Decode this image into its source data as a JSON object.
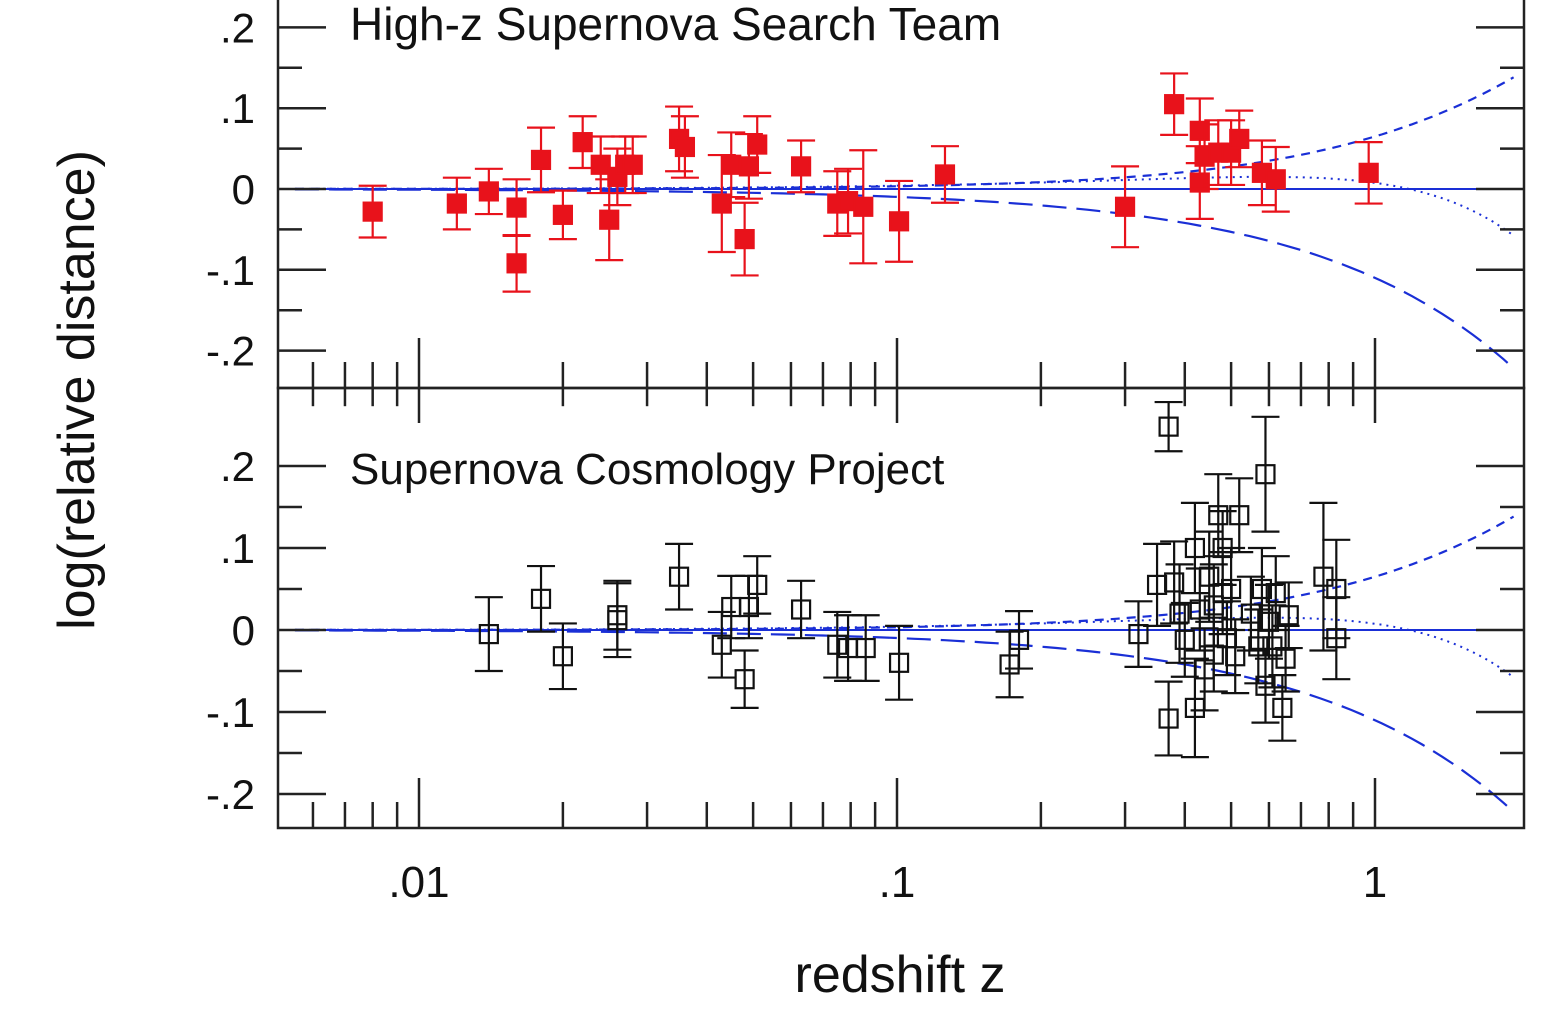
{
  "colors": {
    "axis": "#222222",
    "hz_marker": "#e8121b",
    "hz_title": "#e8121b",
    "scp_marker": "#111111",
    "scp_title": "#111111",
    "models": "#1a2fd6"
  },
  "chart_data": [
    {
      "type": "scatter",
      "title": "High-z Supernova Search Team",
      "xlabel": "redshift z",
      "ylabel": "log(relative distance)",
      "xscale": "log",
      "xlim": [
        0.005,
        2.0
      ],
      "ylim": [
        -0.24,
        0.24
      ],
      "y_ticks": [
        ".2",
        ".1",
        "0",
        "-.1",
        "-.2"
      ],
      "marker": "filled-square",
      "series": [
        {
          "points": [
            {
              "z": 0.008,
              "y": -0.028,
              "err": 0.032
            },
            {
              "z": 0.012,
              "y": -0.018,
              "err": 0.032
            },
            {
              "z": 0.014,
              "y": -0.003,
              "err": 0.028
            },
            {
              "z": 0.016,
              "y": -0.092,
              "err": 0.035
            },
            {
              "z": 0.016,
              "y": -0.023,
              "err": 0.035
            },
            {
              "z": 0.018,
              "y": 0.036,
              "err": 0.04
            },
            {
              "z": 0.02,
              "y": -0.032,
              "err": 0.03
            },
            {
              "z": 0.022,
              "y": 0.058,
              "err": 0.032
            },
            {
              "z": 0.024,
              "y": 0.03,
              "err": 0.035
            },
            {
              "z": 0.025,
              "y": -0.038,
              "err": 0.05
            },
            {
              "z": 0.026,
              "y": 0.015,
              "err": 0.035
            },
            {
              "z": 0.027,
              "y": 0.03,
              "err": 0.035
            },
            {
              "z": 0.028,
              "y": 0.03,
              "err": 0.035
            },
            {
              "z": 0.035,
              "y": 0.062,
              "err": 0.04
            },
            {
              "z": 0.036,
              "y": 0.052,
              "err": 0.038
            },
            {
              "z": 0.043,
              "y": -0.018,
              "err": 0.06
            },
            {
              "z": 0.045,
              "y": 0.03,
              "err": 0.04
            },
            {
              "z": 0.048,
              "y": -0.062,
              "err": 0.045
            },
            {
              "z": 0.049,
              "y": 0.028,
              "err": 0.04
            },
            {
              "z": 0.051,
              "y": 0.055,
              "err": 0.035
            },
            {
              "z": 0.063,
              "y": 0.028,
              "err": 0.032
            },
            {
              "z": 0.075,
              "y": -0.018,
              "err": 0.04
            },
            {
              "z": 0.079,
              "y": -0.015,
              "err": 0.04
            },
            {
              "z": 0.085,
              "y": -0.022,
              "err": 0.07
            },
            {
              "z": 0.101,
              "y": -0.04,
              "err": 0.05
            },
            {
              "z": 0.126,
              "y": 0.018,
              "err": 0.035
            },
            {
              "z": 0.3,
              "y": -0.022,
              "err": 0.05
            },
            {
              "z": 0.38,
              "y": 0.105,
              "err": 0.038
            },
            {
              "z": 0.43,
              "y": 0.072,
              "err": 0.04
            },
            {
              "z": 0.43,
              "y": 0.008,
              "err": 0.045
            },
            {
              "z": 0.44,
              "y": 0.04,
              "err": 0.04
            },
            {
              "z": 0.47,
              "y": 0.045,
              "err": 0.04
            },
            {
              "z": 0.5,
              "y": 0.045,
              "err": 0.04
            },
            {
              "z": 0.52,
              "y": 0.062,
              "err": 0.035
            },
            {
              "z": 0.58,
              "y": 0.02,
              "err": 0.04
            },
            {
              "z": 0.62,
              "y": 0.012,
              "err": 0.04
            },
            {
              "z": 0.97,
              "y": 0.02,
              "err": 0.038
            }
          ]
        }
      ]
    },
    {
      "type": "scatter",
      "title": "Supernova Cosmology Project",
      "xlabel": "redshift z",
      "ylabel": "log(relative distance)",
      "xscale": "log",
      "xlim": [
        0.005,
        2.0
      ],
      "ylim": [
        -0.24,
        0.24
      ],
      "x_ticks": [
        ".01",
        ".1",
        "1"
      ],
      "y_ticks": [
        ".2",
        ".1",
        "0",
        "-.1",
        "-.2"
      ],
      "marker": "open-square",
      "series": [
        {
          "points": [
            {
              "z": 0.014,
              "y": -0.005,
              "err": 0.045
            },
            {
              "z": 0.018,
              "y": 0.038,
              "err": 0.04
            },
            {
              "z": 0.02,
              "y": -0.032,
              "err": 0.04
            },
            {
              "z": 0.026,
              "y": 0.012,
              "err": 0.045
            },
            {
              "z": 0.026,
              "y": 0.018,
              "err": 0.042
            },
            {
              "z": 0.035,
              "y": 0.065,
              "err": 0.04
            },
            {
              "z": 0.043,
              "y": -0.018,
              "err": 0.04
            },
            {
              "z": 0.045,
              "y": 0.028,
              "err": 0.038
            },
            {
              "z": 0.048,
              "y": -0.06,
              "err": 0.035
            },
            {
              "z": 0.049,
              "y": 0.028,
              "err": 0.038
            },
            {
              "z": 0.051,
              "y": 0.055,
              "err": 0.035
            },
            {
              "z": 0.063,
              "y": 0.025,
              "err": 0.035
            },
            {
              "z": 0.075,
              "y": -0.018,
              "err": 0.04
            },
            {
              "z": 0.079,
              "y": -0.022,
              "err": 0.04
            },
            {
              "z": 0.086,
              "y": -0.022,
              "err": 0.04
            },
            {
              "z": 0.101,
              "y": -0.04,
              "err": 0.045
            },
            {
              "z": 0.172,
              "y": -0.042,
              "err": 0.04
            },
            {
              "z": 0.18,
              "y": -0.012,
              "err": 0.035
            },
            {
              "z": 0.32,
              "y": -0.005,
              "err": 0.04
            },
            {
              "z": 0.35,
              "y": 0.055,
              "err": 0.05
            },
            {
              "z": 0.37,
              "y": 0.248,
              "err": 0.03
            },
            {
              "z": 0.37,
              "y": -0.108,
              "err": 0.045
            },
            {
              "z": 0.38,
              "y": 0.058,
              "err": 0.05
            },
            {
              "z": 0.39,
              "y": 0.02,
              "err": 0.06
            },
            {
              "z": 0.4,
              "y": -0.012,
              "err": 0.045
            },
            {
              "z": 0.42,
              "y": 0.1,
              "err": 0.055
            },
            {
              "z": 0.42,
              "y": -0.095,
              "err": 0.06
            },
            {
              "z": 0.43,
              "y": 0.025,
              "err": 0.05
            },
            {
              "z": 0.44,
              "y": -0.048,
              "err": 0.05
            },
            {
              "z": 0.45,
              "y": 0.065,
              "err": 0.055
            },
            {
              "z": 0.46,
              "y": 0.03,
              "err": 0.05
            },
            {
              "z": 0.46,
              "y": -0.03,
              "err": 0.045
            },
            {
              "z": 0.47,
              "y": 0.14,
              "err": 0.05
            },
            {
              "z": 0.48,
              "y": 0.1,
              "err": 0.045
            },
            {
              "z": 0.48,
              "y": 0.045,
              "err": 0.05
            },
            {
              "z": 0.49,
              "y": -0.01,
              "err": 0.045
            },
            {
              "z": 0.5,
              "y": 0.05,
              "err": 0.05
            },
            {
              "z": 0.51,
              "y": -0.032,
              "err": 0.045
            },
            {
              "z": 0.52,
              "y": 0.14,
              "err": 0.045
            },
            {
              "z": 0.55,
              "y": 0.02,
              "err": 0.045
            },
            {
              "z": 0.57,
              "y": -0.02,
              "err": 0.045
            },
            {
              "z": 0.58,
              "y": 0.05,
              "err": 0.05
            },
            {
              "z": 0.59,
              "y": 0.19,
              "err": 0.07
            },
            {
              "z": 0.59,
              "y": -0.068,
              "err": 0.045
            },
            {
              "z": 0.6,
              "y": 0.01,
              "err": 0.045
            },
            {
              "z": 0.61,
              "y": -0.02,
              "err": 0.05
            },
            {
              "z": 0.62,
              "y": 0.045,
              "err": 0.045
            },
            {
              "z": 0.64,
              "y": -0.095,
              "err": 0.04
            },
            {
              "z": 0.65,
              "y": -0.035,
              "err": 0.04
            },
            {
              "z": 0.66,
              "y": 0.018,
              "err": 0.04
            },
            {
              "z": 0.78,
              "y": 0.065,
              "err": 0.09
            },
            {
              "z": 0.83,
              "y": 0.05,
              "err": 0.06
            },
            {
              "z": 0.83,
              "y": -0.01,
              "err": 0.05
            }
          ]
        }
      ]
    }
  ]
}
